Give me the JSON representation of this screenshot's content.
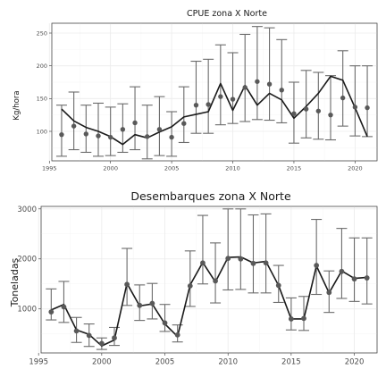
{
  "chart_data": [
    {
      "type": "line",
      "title": "CPUE zona X Norte",
      "xlabel": "",
      "ylabel": "Kg/hora",
      "xlim": [
        1995.2,
        2021.8
      ],
      "ylim": [
        55,
        265
      ],
      "x_ticks": [
        1995,
        2000,
        2005,
        2010,
        2015,
        2020
      ],
      "y_ticks": [
        100,
        150,
        200,
        250
      ],
      "grid": true,
      "years": [
        1996,
        1997,
        1998,
        1999,
        2000,
        2001,
        2002,
        2003,
        2004,
        2005,
        2006,
        2007,
        2008,
        2009,
        2010,
        2011,
        2012,
        2013,
        2014,
        2015,
        2016,
        2017,
        2018,
        2019,
        2020,
        2021
      ],
      "series": [
        {
          "kind": "observed_mean_with_error_bars",
          "values": [
            95,
            108,
            96,
            93,
            91,
            103,
            113,
            92,
            103,
            91,
            112,
            140,
            141,
            153,
            149,
            167,
            176,
            172,
            163,
            127,
            134,
            131,
            125,
            151,
            137,
            136
          ],
          "lower": [
            62,
            72,
            68,
            62,
            63,
            68,
            72,
            58,
            63,
            62,
            83,
            97,
            97,
            110,
            112,
            115,
            118,
            117,
            113,
            82,
            90,
            88,
            87,
            108,
            93,
            92
          ],
          "upper": [
            140,
            160,
            140,
            143,
            137,
            142,
            168,
            140,
            153,
            130,
            168,
            207,
            210,
            232,
            220,
            248,
            260,
            258,
            240,
            175,
            193,
            190,
            185,
            223,
            200,
            200
          ]
        },
        {
          "kind": "fitted_line",
          "values": [
            134,
            116,
            106,
            100,
            92,
            80,
            95,
            90,
            99,
            107,
            122,
            126,
            130,
            173,
            132,
            170,
            140,
            158,
            148,
            120,
            138,
            158,
            184,
            178,
            136,
            92
          ]
        }
      ]
    },
    {
      "type": "line",
      "title": "Desembarques zona X Norte",
      "xlabel": "",
      "ylabel": "Toneladas",
      "xlim": [
        1995.2,
        2021.8
      ],
      "ylim": [
        120,
        3050
      ],
      "x_ticks": [
        1995,
        2000,
        2005,
        2010,
        2015,
        2020
      ],
      "y_ticks": [
        1000,
        2000,
        3000
      ],
      "grid": true,
      "years": [
        1996,
        1997,
        1998,
        1999,
        2000,
        2001,
        2002,
        2003,
        2004,
        2005,
        2006,
        2007,
        2008,
        2009,
        2010,
        2011,
        2012,
        2013,
        2014,
        2015,
        2016,
        2017,
        2018,
        2019,
        2020,
        2021
      ],
      "series": [
        {
          "kind": "observed_mean_with_error_bars",
          "values": [
            940,
            1040,
            560,
            470,
            310,
            420,
            1490,
            1070,
            1110,
            720,
            480,
            1460,
            1920,
            1560,
            2010,
            2000,
            1910,
            1920,
            1470,
            800,
            810,
            1870,
            1330,
            1750,
            1600,
            1620
          ],
          "lower": [
            780,
            730,
            330,
            250,
            190,
            270,
            1070,
            770,
            800,
            550,
            340,
            1050,
            1500,
            1120,
            1380,
            1390,
            1320,
            1320,
            1130,
            580,
            570,
            1290,
            930,
            1210,
            1150,
            1100
          ],
          "upper": [
            1400,
            1550,
            830,
            700,
            420,
            630,
            2210,
            1480,
            1510,
            1090,
            680,
            2160,
            2870,
            2320,
            3000,
            3000,
            2880,
            2900,
            1870,
            1220,
            1250,
            2790,
            1760,
            2610,
            2420,
            2420
          ]
        },
        {
          "kind": "fitted_line",
          "values": [
            980,
            1090,
            580,
            490,
            260,
            380,
            1510,
            1060,
            1100,
            700,
            450,
            1480,
            1930,
            1540,
            2030,
            2040,
            1920,
            1950,
            1470,
            800,
            800,
            1860,
            1320,
            1760,
            1610,
            1630
          ]
        }
      ]
    }
  ]
}
